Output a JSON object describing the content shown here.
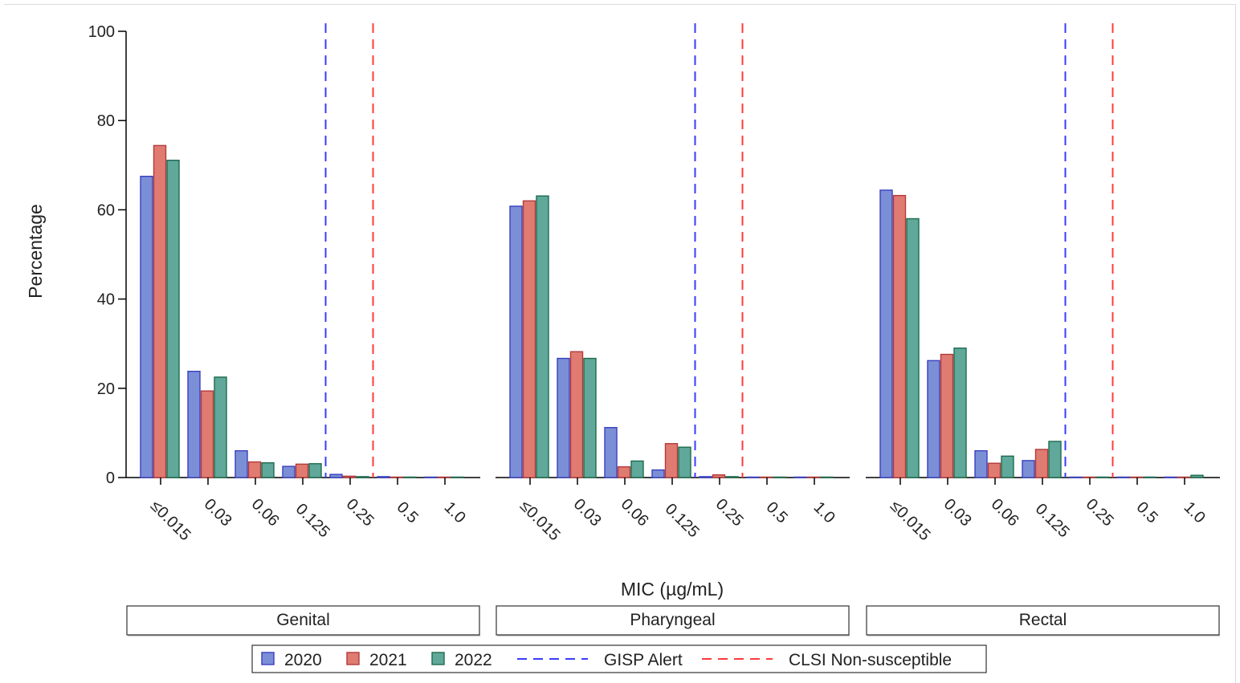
{
  "chart_data": {
    "type": "bar",
    "xlabel": "MIC (µg/mL)",
    "ylabel": "Percentage",
    "ylim": [
      0,
      100
    ],
    "yticks": [
      0,
      20,
      40,
      60,
      80,
      100
    ],
    "categories": [
      "≤0.015",
      "0.03",
      "0.06",
      "0.125",
      "0.25",
      "0.5",
      "1.0"
    ],
    "series_names": [
      "2020",
      "2021",
      "2022"
    ],
    "colors": {
      "2020": "#7b8fd6",
      "2021": "#e07b72",
      "2022": "#5fa89a",
      "2020_edge": "#3a3fbf",
      "2021_edge": "#b33a3a",
      "2022_edge": "#1d6b4e",
      "gisp": "#3b3bff",
      "clsi": "#ff3b3b"
    },
    "reference_lines": [
      {
        "name": "GISP Alert",
        "between": [
          "0.125",
          "0.25"
        ]
      },
      {
        "name": "CLSI Non-susceptible",
        "between": [
          "0.25",
          "0.5"
        ]
      }
    ],
    "panels": [
      {
        "label": "Genital",
        "series": [
          {
            "name": "2020",
            "values": [
              67.5,
              23.8,
              6.0,
              2.5,
              0.7,
              0.2,
              0.1
            ]
          },
          {
            "name": "2021",
            "values": [
              74.4,
              19.4,
              3.5,
              3.0,
              0.3,
              0.1,
              0.1
            ]
          },
          {
            "name": "2022",
            "values": [
              71.1,
              22.5,
              3.3,
              3.1,
              0.2,
              0.1,
              0.1
            ]
          }
        ]
      },
      {
        "label": "Pharyngeal",
        "series": [
          {
            "name": "2020",
            "values": [
              60.8,
              26.7,
              11.2,
              1.7,
              0.2,
              0.1,
              0.1
            ]
          },
          {
            "name": "2021",
            "values": [
              62.0,
              28.2,
              2.4,
              7.6,
              0.6,
              0.1,
              0.1
            ]
          },
          {
            "name": "2022",
            "values": [
              63.1,
              26.7,
              3.7,
              6.8,
              0.2,
              0.1,
              0.1
            ]
          }
        ]
      },
      {
        "label": "Rectal",
        "series": [
          {
            "name": "2020",
            "values": [
              64.4,
              26.2,
              6.0,
              3.8,
              0.1,
              0.1,
              0.1
            ]
          },
          {
            "name": "2021",
            "values": [
              63.2,
              27.6,
              3.2,
              6.3,
              0.1,
              0.1,
              0.1
            ]
          },
          {
            "name": "2022",
            "values": [
              58.0,
              29.0,
              4.8,
              8.1,
              0.1,
              0.1,
              0.5
            ]
          }
        ]
      }
    ],
    "legend": {
      "position": "bottom-center",
      "items": [
        "2020",
        "2021",
        "2022",
        "GISP Alert",
        "CLSI Non-susceptible"
      ]
    }
  }
}
